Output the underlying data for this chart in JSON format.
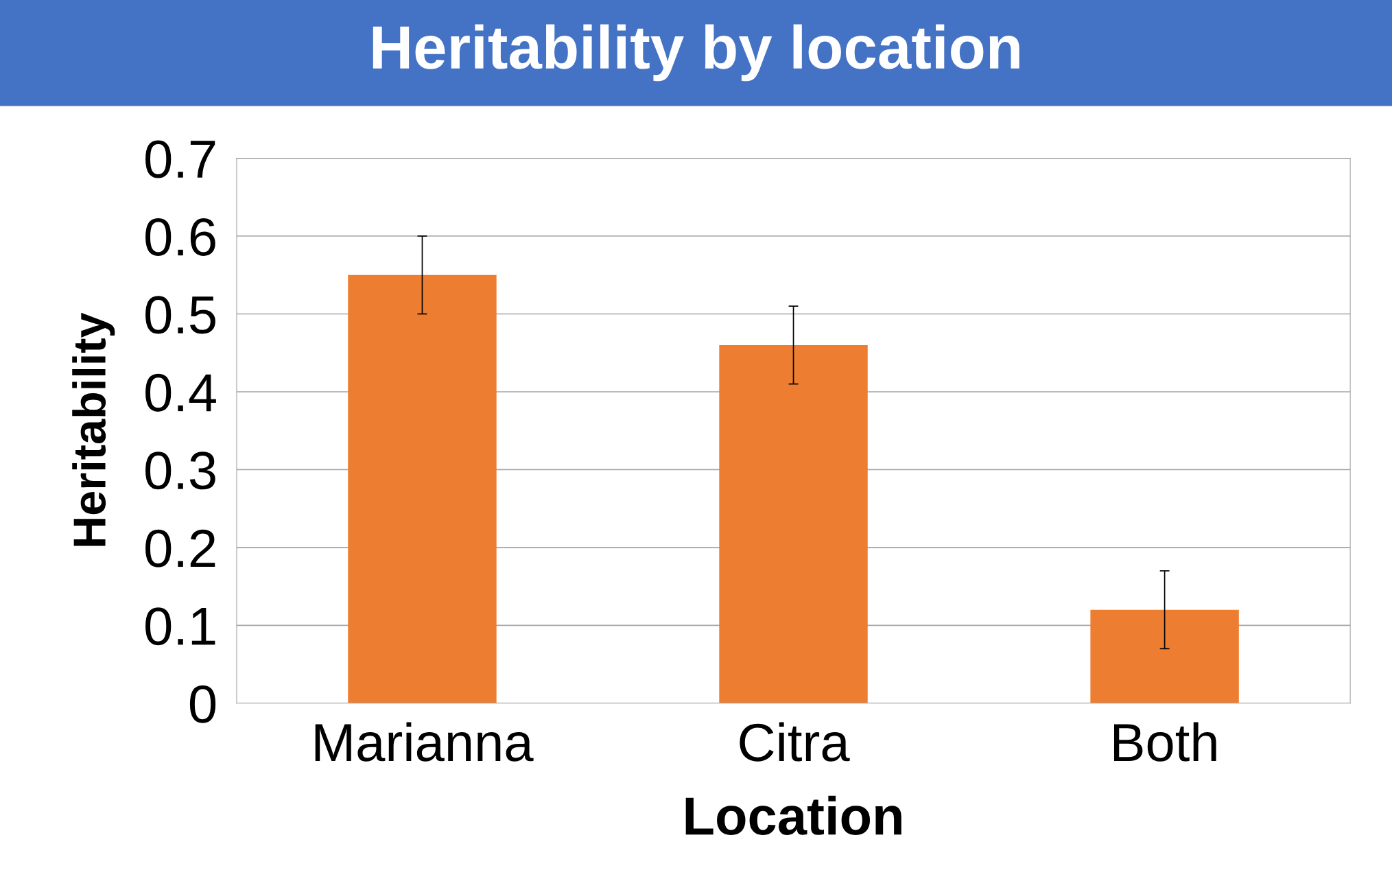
{
  "chart_data": {
    "type": "bar",
    "title": "Heritability by location",
    "xlabel": "Location",
    "ylabel": "Heritability",
    "categories": [
      "Marianna",
      "Citra",
      "Both"
    ],
    "values": [
      0.55,
      0.46,
      0.12
    ],
    "errors": [
      0.05,
      0.05,
      0.05
    ],
    "color": "#ed7d31",
    "ylim": [
      0,
      0.7
    ],
    "yticks": [
      0,
      0.1,
      0.2,
      0.3,
      0.4,
      0.5,
      0.6,
      0.7
    ],
    "grid": "y"
  }
}
